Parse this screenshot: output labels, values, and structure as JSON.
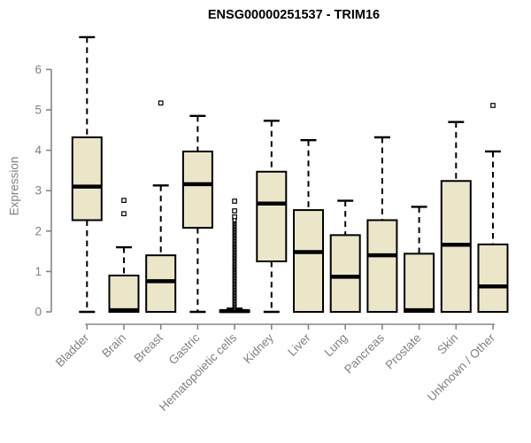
{
  "title": "ENSG00000251537 - TRIM16",
  "chart_data": {
    "type": "boxplot",
    "title": "ENSG00000251537 - TRIM16",
    "xlabel": "",
    "ylabel": "Expression",
    "ylim": [
      0,
      6.8
    ],
    "yticks": [
      0,
      1,
      2,
      3,
      4,
      5,
      6
    ],
    "grid": false,
    "legend": null,
    "categories": [
      "Bladder",
      "Brain",
      "Breast",
      "Gastric",
      "Hematopoietic cells",
      "Kidney",
      "Liver",
      "Lung",
      "Pancreas",
      "Prostate",
      "Skin",
      "Unknown / Other"
    ],
    "series": [
      {
        "name": "Bladder",
        "min": 0,
        "q1": 2.27,
        "median": 3.1,
        "q3": 4.32,
        "max": 6.8,
        "outliers": []
      },
      {
        "name": "Brain",
        "min": 0,
        "q1": 0.0,
        "median": 0.04,
        "q3": 0.9,
        "max": 1.6,
        "outliers": [
          2.43,
          2.76
        ]
      },
      {
        "name": "Breast",
        "min": 0,
        "q1": 0.0,
        "median": 0.76,
        "q3": 1.4,
        "max": 3.13,
        "outliers": [
          5.17
        ]
      },
      {
        "name": "Gastric",
        "min": 0,
        "q1": 2.08,
        "median": 3.16,
        "q3": 3.97,
        "max": 4.85,
        "outliers": []
      },
      {
        "name": "Hematopoietic cells",
        "min": 0,
        "q1": 0.0,
        "median": 0.02,
        "q3": 0.04,
        "max": 0.08,
        "outliers": [
          2.35,
          2.5,
          2.74
        ],
        "outliers_dense": {
          "from": 0.08,
          "to": 2.27,
          "count": 70
        }
      },
      {
        "name": "Kidney",
        "min": 0,
        "q1": 1.25,
        "median": 2.68,
        "q3": 3.47,
        "max": 4.73,
        "outliers": []
      },
      {
        "name": "Liver",
        "min": 0,
        "q1": 0.0,
        "median": 1.48,
        "q3": 2.52,
        "max": 4.25,
        "outliers": []
      },
      {
        "name": "Lung",
        "min": 0,
        "q1": 0.0,
        "median": 0.87,
        "q3": 1.9,
        "max": 2.75,
        "outliers": []
      },
      {
        "name": "Pancreas",
        "min": 0,
        "q1": 0.0,
        "median": 1.4,
        "q3": 2.27,
        "max": 4.32,
        "outliers": []
      },
      {
        "name": "Prostate",
        "min": 0,
        "q1": 0.0,
        "median": 0.04,
        "q3": 1.44,
        "max": 2.6,
        "outliers": []
      },
      {
        "name": "Skin",
        "min": 0,
        "q1": 0.0,
        "median": 1.66,
        "q3": 3.24,
        "max": 4.7,
        "outliers": []
      },
      {
        "name": "Unknown / Other",
        "min": 0,
        "q1": 0.0,
        "median": 0.63,
        "q3": 1.67,
        "max": 3.97,
        "outliers": [
          5.11
        ]
      }
    ],
    "colors": {
      "box_fill": "#ece6c9",
      "box_border": "#000000",
      "median": "#000000",
      "whisker": "#000000",
      "axis": "#858585",
      "tick_label": "#808080",
      "title": "#000000",
      "background": "#ffffff"
    }
  }
}
